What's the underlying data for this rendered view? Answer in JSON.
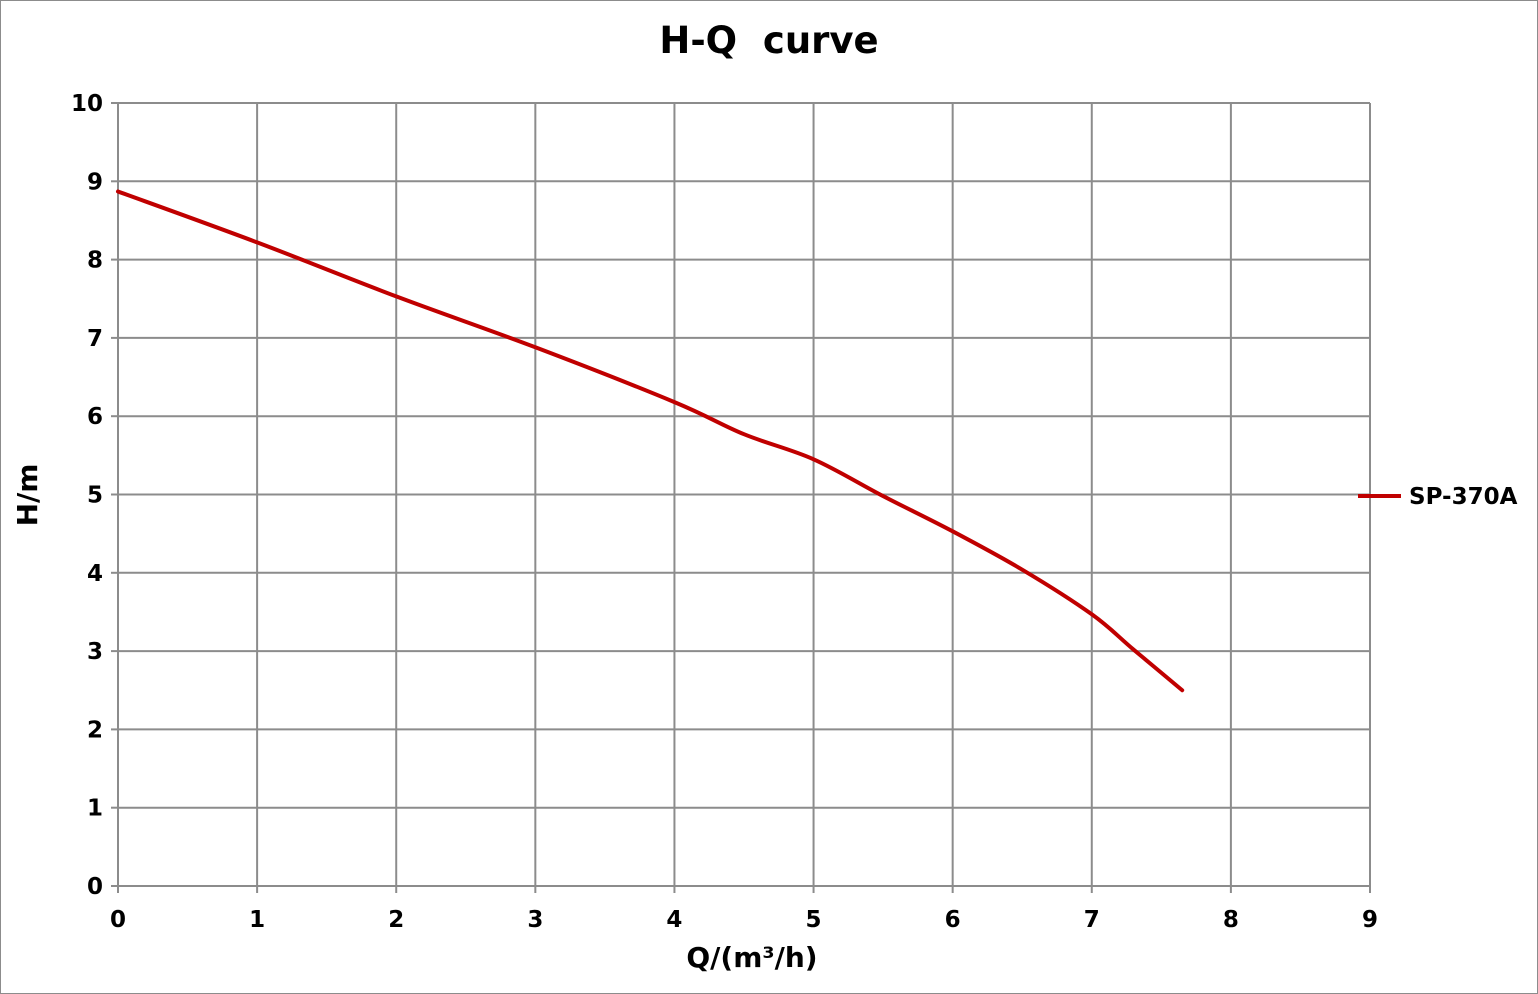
{
  "chart_data": {
    "type": "line",
    "title": "H-Q  curve",
    "xlabel": "Q/(m³/h)",
    "ylabel": "H/m",
    "xlim": [
      0,
      9
    ],
    "ylim": [
      0,
      10
    ],
    "xticks": [
      0,
      1,
      2,
      3,
      4,
      5,
      6,
      7,
      8,
      9
    ],
    "yticks": [
      0,
      1,
      2,
      3,
      4,
      5,
      6,
      7,
      8,
      9,
      10
    ],
    "grid": true,
    "legend_position": "right",
    "series": [
      {
        "name": "SP-370A",
        "color": "#c00000",
        "x": [
          0,
          1,
          2,
          3,
          4,
          4.5,
          5,
          5.5,
          6,
          6.5,
          7,
          7.3,
          7.65
        ],
        "y": [
          8.87,
          8.22,
          7.53,
          6.88,
          6.18,
          5.77,
          5.45,
          4.98,
          4.53,
          4.04,
          3.47,
          3.02,
          2.5
        ]
      }
    ]
  }
}
